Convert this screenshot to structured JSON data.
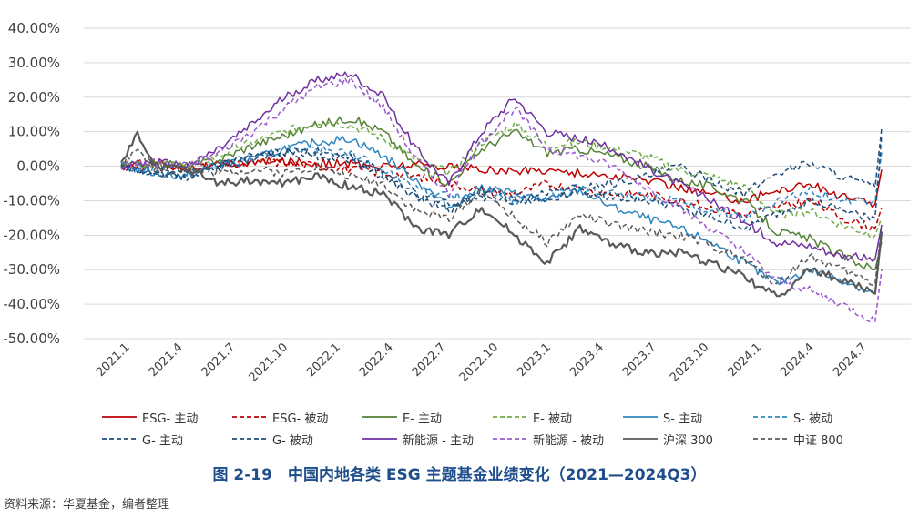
{
  "chart_data": {
    "type": "line",
    "title": "图 2-19　中国内地各类 ESG 主题基金业绩变化（2021—2024Q3）",
    "xlabel": "",
    "ylabel": "",
    "ylim": [
      -0.5,
      0.4
    ],
    "yticks": [
      "40.00%",
      "30.00%",
      "20.00%",
      "10.00%",
      "0.00%",
      "-10.00%",
      "-20.00%",
      "-30.00%",
      "-40.00%",
      "-50.00%"
    ],
    "xticks": [
      "2021.1",
      "2021.4",
      "2021.7",
      "2021.10",
      "2022.1",
      "2022.4",
      "2022.7",
      "2022.10",
      "2023.1",
      "2023.4",
      "2023.7",
      "2023.10",
      "2024.1",
      "2024.4",
      "2024.7"
    ],
    "x_range": [
      0,
      23.2
    ],
    "series": [
      {
        "name": "ESG- 主动",
        "color": "#c00000",
        "dash": "solid",
        "points": [
          [
            0,
            0
          ],
          [
            1,
            0.01
          ],
          [
            2,
            -0.005
          ],
          [
            3,
            0.005
          ],
          [
            4,
            0.01
          ],
          [
            5,
            0.015
          ],
          [
            6,
            0.01
          ],
          [
            7,
            0.005
          ],
          [
            8,
            0.0
          ],
          [
            9,
            0.005
          ],
          [
            10,
            0.0
          ],
          [
            11,
            -0.01
          ],
          [
            12,
            -0.015
          ],
          [
            13,
            -0.01
          ],
          [
            14,
            -0.02
          ],
          [
            15,
            -0.03
          ],
          [
            16,
            -0.04
          ],
          [
            17,
            -0.06
          ],
          [
            18,
            -0.08
          ],
          [
            19,
            -0.1
          ],
          [
            20,
            -0.07
          ],
          [
            21,
            -0.05
          ],
          [
            22,
            -0.09
          ],
          [
            23,
            -0.11
          ],
          [
            23.2,
            -0.01
          ]
        ]
      },
      {
        "name": "ESG- 被动",
        "color": "#c00000",
        "dash": "dashed",
        "points": [
          [
            0,
            0
          ],
          [
            1,
            0.0
          ],
          [
            2,
            -0.01
          ],
          [
            3,
            0.0
          ],
          [
            4,
            0.01
          ],
          [
            5,
            0.01
          ],
          [
            6,
            0.0
          ],
          [
            7,
            -0.01
          ],
          [
            8,
            -0.02
          ],
          [
            9,
            -0.03
          ],
          [
            10,
            -0.05
          ],
          [
            11,
            -0.07
          ],
          [
            12,
            -0.08
          ],
          [
            13,
            -0.05
          ],
          [
            14,
            -0.07
          ],
          [
            15,
            -0.08
          ],
          [
            16,
            -0.08
          ],
          [
            17,
            -0.1
          ],
          [
            18,
            -0.12
          ],
          [
            19,
            -0.14
          ],
          [
            20,
            -0.12
          ],
          [
            21,
            -0.1
          ],
          [
            22,
            -0.15
          ],
          [
            23,
            -0.18
          ],
          [
            23.2,
            -0.12
          ]
        ]
      },
      {
        "name": "E- 主动",
        "color": "#548235",
        "dash": "solid",
        "points": [
          [
            0,
            0
          ],
          [
            1,
            0.01
          ],
          [
            2,
            0.0
          ],
          [
            3,
            0.02
          ],
          [
            4,
            0.06
          ],
          [
            5,
            0.09
          ],
          [
            6,
            0.12
          ],
          [
            7,
            0.14
          ],
          [
            8,
            0.1
          ],
          [
            9,
            0.0
          ],
          [
            10,
            -0.05
          ],
          [
            11,
            0.05
          ],
          [
            12,
            0.1
          ],
          [
            13,
            0.04
          ],
          [
            14,
            0.05
          ],
          [
            15,
            0.03
          ],
          [
            16,
            0.0
          ],
          [
            17,
            -0.04
          ],
          [
            18,
            -0.06
          ],
          [
            19,
            -0.1
          ],
          [
            20,
            -0.19
          ],
          [
            21,
            -0.21
          ],
          [
            22,
            -0.26
          ],
          [
            23,
            -0.3
          ],
          [
            23.2,
            -0.22
          ]
        ]
      },
      {
        "name": "E- 被动",
        "color": "#70ad47",
        "dash": "dashed",
        "points": [
          [
            0,
            0
          ],
          [
            1,
            0.01
          ],
          [
            2,
            0.0
          ],
          [
            3,
            0.03
          ],
          [
            4,
            0.07
          ],
          [
            5,
            0.1
          ],
          [
            6,
            0.13
          ],
          [
            7,
            0.12
          ],
          [
            8,
            0.08
          ],
          [
            9,
            0.02
          ],
          [
            10,
            -0.02
          ],
          [
            11,
            0.07
          ],
          [
            12,
            0.12
          ],
          [
            13,
            0.06
          ],
          [
            14,
            0.07
          ],
          [
            15,
            0.05
          ],
          [
            16,
            0.03
          ],
          [
            17,
            -0.01
          ],
          [
            18,
            -0.03
          ],
          [
            19,
            -0.06
          ],
          [
            20,
            -0.14
          ],
          [
            21,
            -0.13
          ],
          [
            22,
            -0.17
          ],
          [
            23,
            -0.2
          ],
          [
            23.2,
            -0.15
          ]
        ]
      },
      {
        "name": "S- 主动",
        "color": "#2e86c1",
        "dash": "solid",
        "points": [
          [
            0,
            0
          ],
          [
            1,
            -0.02
          ],
          [
            2,
            -0.03
          ],
          [
            3,
            0.0
          ],
          [
            4,
            0.02
          ],
          [
            5,
            0.05
          ],
          [
            6,
            0.07
          ],
          [
            7,
            0.08
          ],
          [
            8,
            0.03
          ],
          [
            9,
            -0.04
          ],
          [
            10,
            -0.12
          ],
          [
            11,
            -0.06
          ],
          [
            12,
            -0.08
          ],
          [
            13,
            -0.1
          ],
          [
            14,
            -0.07
          ],
          [
            15,
            -0.12
          ],
          [
            16,
            -0.15
          ],
          [
            17,
            -0.18
          ],
          [
            18,
            -0.22
          ],
          [
            19,
            -0.28
          ],
          [
            20,
            -0.34
          ],
          [
            21,
            -0.3
          ],
          [
            22,
            -0.33
          ],
          [
            23,
            -0.37
          ],
          [
            23.2,
            -0.2
          ]
        ]
      },
      {
        "name": "S- 被动",
        "color": "#2e86c1",
        "dash": "dashed",
        "points": [
          [
            0,
            0
          ],
          [
            1,
            -0.01
          ],
          [
            2,
            -0.02
          ],
          [
            3,
            0.01
          ],
          [
            4,
            0.03
          ],
          [
            5,
            0.05
          ],
          [
            6,
            0.05
          ],
          [
            7,
            0.04
          ],
          [
            8,
            -0.01
          ],
          [
            9,
            -0.06
          ],
          [
            10,
            -0.09
          ],
          [
            11,
            -0.07
          ],
          [
            12,
            -0.1
          ],
          [
            13,
            -0.09
          ],
          [
            14,
            -0.06
          ],
          [
            15,
            -0.08
          ],
          [
            16,
            -0.09
          ],
          [
            17,
            -0.1
          ],
          [
            18,
            -0.13
          ],
          [
            19,
            -0.15
          ],
          [
            20,
            -0.1
          ],
          [
            21,
            -0.07
          ],
          [
            22,
            -0.1
          ],
          [
            23,
            -0.1
          ],
          [
            23.2,
            0.04
          ]
        ]
      },
      {
        "name": "G- 主动",
        "color": "#1f4e79",
        "dash": "dashed",
        "points": [
          [
            0,
            0
          ],
          [
            1,
            -0.02
          ],
          [
            2,
            -0.02
          ],
          [
            3,
            0.0
          ],
          [
            4,
            0.03
          ],
          [
            5,
            0.04
          ],
          [
            6,
            0.03
          ],
          [
            7,
            0.02
          ],
          [
            8,
            -0.03
          ],
          [
            9,
            -0.09
          ],
          [
            10,
            -0.13
          ],
          [
            11,
            -0.07
          ],
          [
            12,
            -0.09
          ],
          [
            13,
            -0.08
          ],
          [
            14,
            -0.06
          ],
          [
            15,
            -0.05
          ],
          [
            16,
            -0.03
          ],
          [
            17,
            0.0
          ],
          [
            18,
            -0.04
          ],
          [
            19,
            -0.08
          ],
          [
            20,
            -0.02
          ],
          [
            21,
            0.01
          ],
          [
            22,
            -0.03
          ],
          [
            23,
            -0.06
          ],
          [
            23.2,
            0.11
          ]
        ]
      },
      {
        "name": "G- 被动",
        "color": "#1f4e79",
        "dash": "dashed",
        "points": [
          [
            0,
            0
          ],
          [
            1,
            -0.02
          ],
          [
            2,
            -0.03
          ],
          [
            3,
            0.0
          ],
          [
            4,
            0.02
          ],
          [
            5,
            0.04
          ],
          [
            6,
            0.04
          ],
          [
            7,
            0.03
          ],
          [
            8,
            -0.02
          ],
          [
            9,
            -0.08
          ],
          [
            10,
            -0.11
          ],
          [
            11,
            -0.09
          ],
          [
            12,
            -0.1
          ],
          [
            13,
            -0.1
          ],
          [
            14,
            -0.07
          ],
          [
            15,
            -0.09
          ],
          [
            16,
            -0.1
          ],
          [
            17,
            -0.12
          ],
          [
            18,
            -0.15
          ],
          [
            19,
            -0.18
          ],
          [
            20,
            -0.14
          ],
          [
            21,
            -0.1
          ],
          [
            22,
            -0.13
          ],
          [
            23,
            -0.15
          ],
          [
            23.2,
            0.09
          ]
        ]
      },
      {
        "name": "新能源 - 主动",
        "color": "#7030a0",
        "dash": "solid",
        "points": [
          [
            0,
            0
          ],
          [
            1,
            0.01
          ],
          [
            2,
            0.0
          ],
          [
            3,
            0.05
          ],
          [
            4,
            0.12
          ],
          [
            5,
            0.2
          ],
          [
            6,
            0.25
          ],
          [
            7,
            0.27
          ],
          [
            8,
            0.2
          ],
          [
            9,
            0.05
          ],
          [
            10,
            -0.05
          ],
          [
            11,
            0.1
          ],
          [
            12,
            0.2
          ],
          [
            13,
            0.1
          ],
          [
            14,
            0.08
          ],
          [
            15,
            0.05
          ],
          [
            16,
            0.0
          ],
          [
            17,
            -0.05
          ],
          [
            18,
            -0.1
          ],
          [
            19,
            -0.16
          ],
          [
            20,
            -0.22
          ],
          [
            21,
            -0.23
          ],
          [
            22,
            -0.26
          ],
          [
            23,
            -0.27
          ],
          [
            23.2,
            -0.17
          ]
        ]
      },
      {
        "name": "新能源 - 被动",
        "color": "#9b59d0",
        "dash": "dashed",
        "points": [
          [
            0,
            0
          ],
          [
            1,
            0.01
          ],
          [
            2,
            0.0
          ],
          [
            3,
            0.04
          ],
          [
            4,
            0.1
          ],
          [
            5,
            0.17
          ],
          [
            6,
            0.23
          ],
          [
            7,
            0.25
          ],
          [
            8,
            0.17
          ],
          [
            9,
            0.02
          ],
          [
            10,
            -0.08
          ],
          [
            11,
            0.07
          ],
          [
            12,
            0.17
          ],
          [
            13,
            0.05
          ],
          [
            14,
            0.03
          ],
          [
            15,
            0.0
          ],
          [
            16,
            -0.06
          ],
          [
            17,
            -0.12
          ],
          [
            18,
            -0.18
          ],
          [
            19,
            -0.25
          ],
          [
            20,
            -0.33
          ],
          [
            21,
            -0.36
          ],
          [
            22,
            -0.4
          ],
          [
            23,
            -0.45
          ],
          [
            23.2,
            -0.3
          ]
        ]
      },
      {
        "name": "沪深 300",
        "color": "#595959",
        "dash": "solid",
        "points": [
          [
            0,
            0
          ],
          [
            0.5,
            0.1
          ],
          [
            1,
            0.0
          ],
          [
            2,
            -0.01
          ],
          [
            3,
            -0.05
          ],
          [
            4,
            -0.04
          ],
          [
            5,
            -0.05
          ],
          [
            6,
            -0.03
          ],
          [
            7,
            -0.06
          ],
          [
            8,
            -0.08
          ],
          [
            9,
            -0.18
          ],
          [
            10,
            -0.2
          ],
          [
            11,
            -0.12
          ],
          [
            12,
            -0.2
          ],
          [
            13,
            -0.28
          ],
          [
            14,
            -0.18
          ],
          [
            15,
            -0.23
          ],
          [
            16,
            -0.25
          ],
          [
            17,
            -0.25
          ],
          [
            18,
            -0.28
          ],
          [
            19,
            -0.32
          ],
          [
            20,
            -0.38
          ],
          [
            21,
            -0.3
          ],
          [
            22,
            -0.33
          ],
          [
            23,
            -0.37
          ],
          [
            23.2,
            -0.19
          ]
        ]
      },
      {
        "name": "中证 800",
        "color": "#595959",
        "dash": "dashed",
        "points": [
          [
            0,
            0
          ],
          [
            0.5,
            0.06
          ],
          [
            1,
            -0.01
          ],
          [
            2,
            -0.01
          ],
          [
            3,
            -0.02
          ],
          [
            4,
            -0.01
          ],
          [
            5,
            -0.02
          ],
          [
            6,
            0.0
          ],
          [
            7,
            -0.03
          ],
          [
            8,
            -0.05
          ],
          [
            9,
            -0.13
          ],
          [
            10,
            -0.15
          ],
          [
            11,
            -0.07
          ],
          [
            12,
            -0.15
          ],
          [
            13,
            -0.22
          ],
          [
            14,
            -0.14
          ],
          [
            15,
            -0.17
          ],
          [
            16,
            -0.19
          ],
          [
            17,
            -0.2
          ],
          [
            18,
            -0.23
          ],
          [
            19,
            -0.27
          ],
          [
            20,
            -0.34
          ],
          [
            21,
            -0.26
          ],
          [
            22,
            -0.3
          ],
          [
            23,
            -0.34
          ],
          [
            23.2,
            -0.17
          ]
        ]
      }
    ],
    "legend": {
      "position": "bottom",
      "columns": 6
    }
  },
  "caption": "图 2-19　中国内地各类 ESG 主题基金业绩变化（2021—2024Q3）",
  "source": "资料来源：华夏基金，编者整理"
}
